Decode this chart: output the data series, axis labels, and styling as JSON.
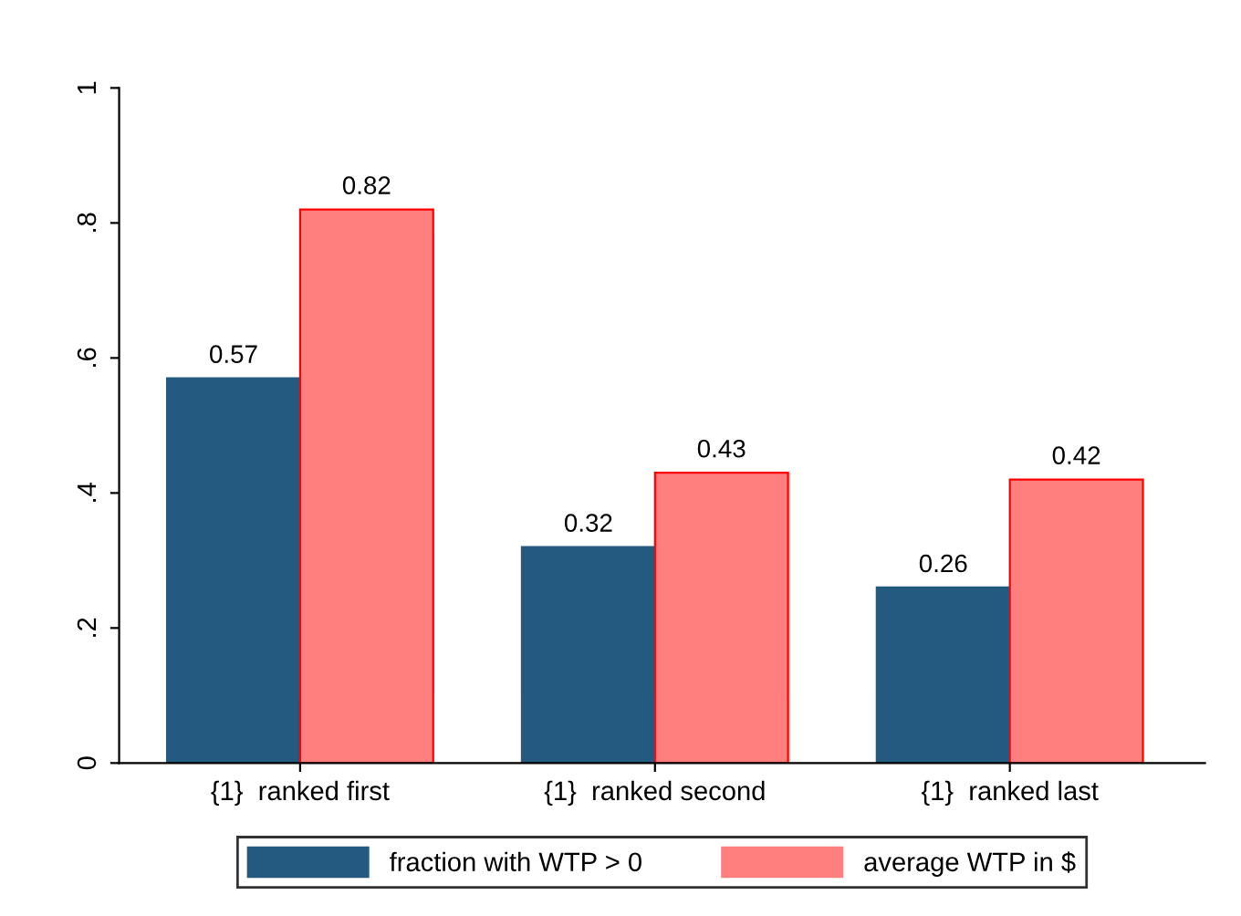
{
  "chart_data": {
    "type": "bar",
    "categories": [
      "{1}  ranked first",
      "{1}  ranked second",
      "{1}  ranked last"
    ],
    "series": [
      {
        "name": "fraction with WTP > 0",
        "color": "#245a80",
        "values": [
          0.57,
          0.32,
          0.26
        ]
      },
      {
        "name": "average WTP in $",
        "color": "#ff7f7f",
        "values": [
          0.82,
          0.43,
          0.42
        ]
      }
    ],
    "ylim": [
      0,
      1
    ],
    "yticks": [
      0,
      {
        "value": 0.2,
        "label": ".2"
      },
      {
        "value": 0.4,
        "label": ".4"
      },
      {
        "value": 0.6,
        "label": ".6"
      },
      {
        "value": 0.8,
        "label": ".8"
      },
      1
    ],
    "data_labels": true,
    "legend": "bottom",
    "grid": false
  }
}
